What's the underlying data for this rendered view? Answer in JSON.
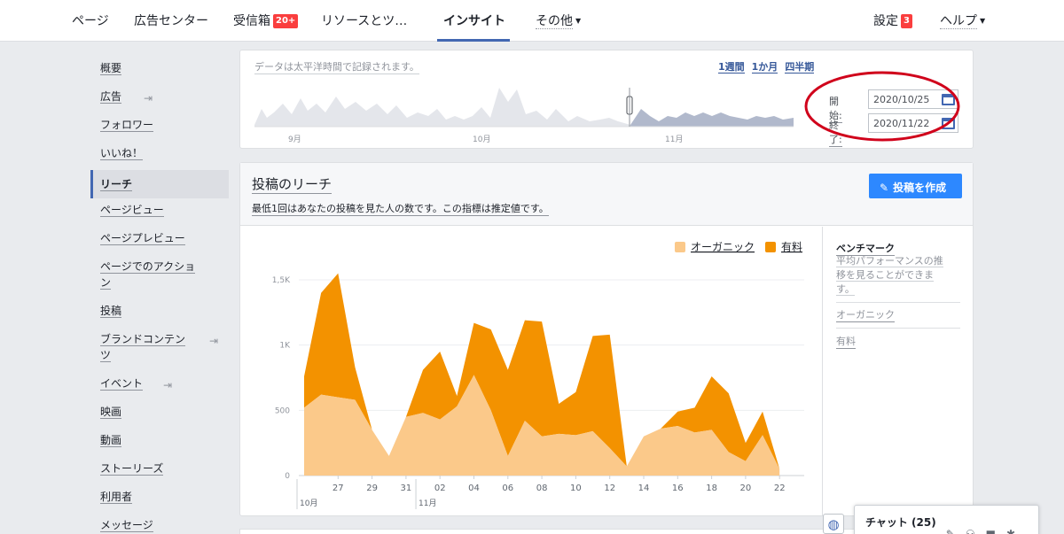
{
  "nav": {
    "items": [
      "ページ",
      "広告センター",
      "受信箱",
      "リソースとツ…",
      "インサイト",
      "その他"
    ],
    "inbox_badge": "20+",
    "settings": "設定",
    "settings_badge": "3",
    "help": "ヘルプ"
  },
  "sidebar": {
    "items": [
      "概要",
      "広告",
      "フォロワー",
      "いいね！",
      "リーチ",
      "ページビュー",
      "ページプレビュー",
      "ページでのアクショ",
      "ン",
      "投稿",
      "ブランドコンテン",
      "ツ",
      "イベント",
      "映画",
      "動画",
      "ストーリーズ",
      "利用者",
      "メッセージ"
    ]
  },
  "range": {
    "note": "データは太平洋時間で記録されます。",
    "links": [
      "1週間",
      "1か月",
      "四半期"
    ],
    "months": [
      "9月",
      "10月",
      "11月"
    ],
    "start_label": "開始:",
    "start_value": "2020/10/25",
    "end_label": "終了:",
    "end_value": "2020/11/22"
  },
  "reach": {
    "title": "投稿のリーチ",
    "description": "最低1回はあなたの投稿を見た人の数です。この指標は推定値です。",
    "create_button": "投稿を作成",
    "benchmark_title": "ベンチマーク",
    "benchmark_desc": [
      "平均パフォーマンスの推",
      "移を見ることができま",
      "す。"
    ],
    "benchmark_links": [
      "オーガニック",
      "有料"
    ]
  },
  "chat": {
    "label": "チャット (25)"
  },
  "colors": {
    "organic": "#fbc98a",
    "paid": "#f39200",
    "brand": "#4267b2",
    "badge": "#fa3e3e",
    "annotation": "#d0021b"
  },
  "chart_data": {
    "type": "area",
    "stacked": true,
    "x": [
      "10/25",
      "10/26",
      "10/27",
      "10/28",
      "10/29",
      "10/30",
      "10/31",
      "11/01",
      "11/02",
      "11/03",
      "11/04",
      "11/05",
      "11/06",
      "11/07",
      "11/08",
      "11/09",
      "11/10",
      "11/11",
      "11/12",
      "11/13",
      "11/14",
      "11/15",
      "11/16",
      "11/17",
      "11/18",
      "11/19",
      "11/20",
      "11/21",
      "11/22"
    ],
    "x_ticks": [
      "27",
      "29",
      "31",
      "02",
      "04",
      "06",
      "08",
      "10",
      "12",
      "14",
      "16",
      "18",
      "20",
      "22"
    ],
    "x_month_labels": [
      "10月",
      "11月"
    ],
    "y_ticks": [
      "0",
      "500",
      "1K",
      "1,5K"
    ],
    "ylim": [
      0,
      1500
    ],
    "legend_position": "top-right",
    "series": [
      {
        "name": "オーガニック",
        "values": [
          520,
          620,
          600,
          580,
          350,
          150,
          450,
          480,
          430,
          530,
          770,
          500,
          150,
          420,
          300,
          320,
          310,
          340,
          210,
          70,
          300,
          360,
          380,
          330,
          350,
          180,
          110,
          310,
          50
        ]
      },
      {
        "name": "有料",
        "values": [
          240,
          780,
          950,
          250,
          0,
          0,
          0,
          330,
          520,
          80,
          400,
          620,
          660,
          770,
          880,
          230,
          330,
          730,
          870,
          0,
          0,
          0,
          110,
          190,
          410,
          450,
          140,
          180,
          0
        ]
      }
    ]
  }
}
